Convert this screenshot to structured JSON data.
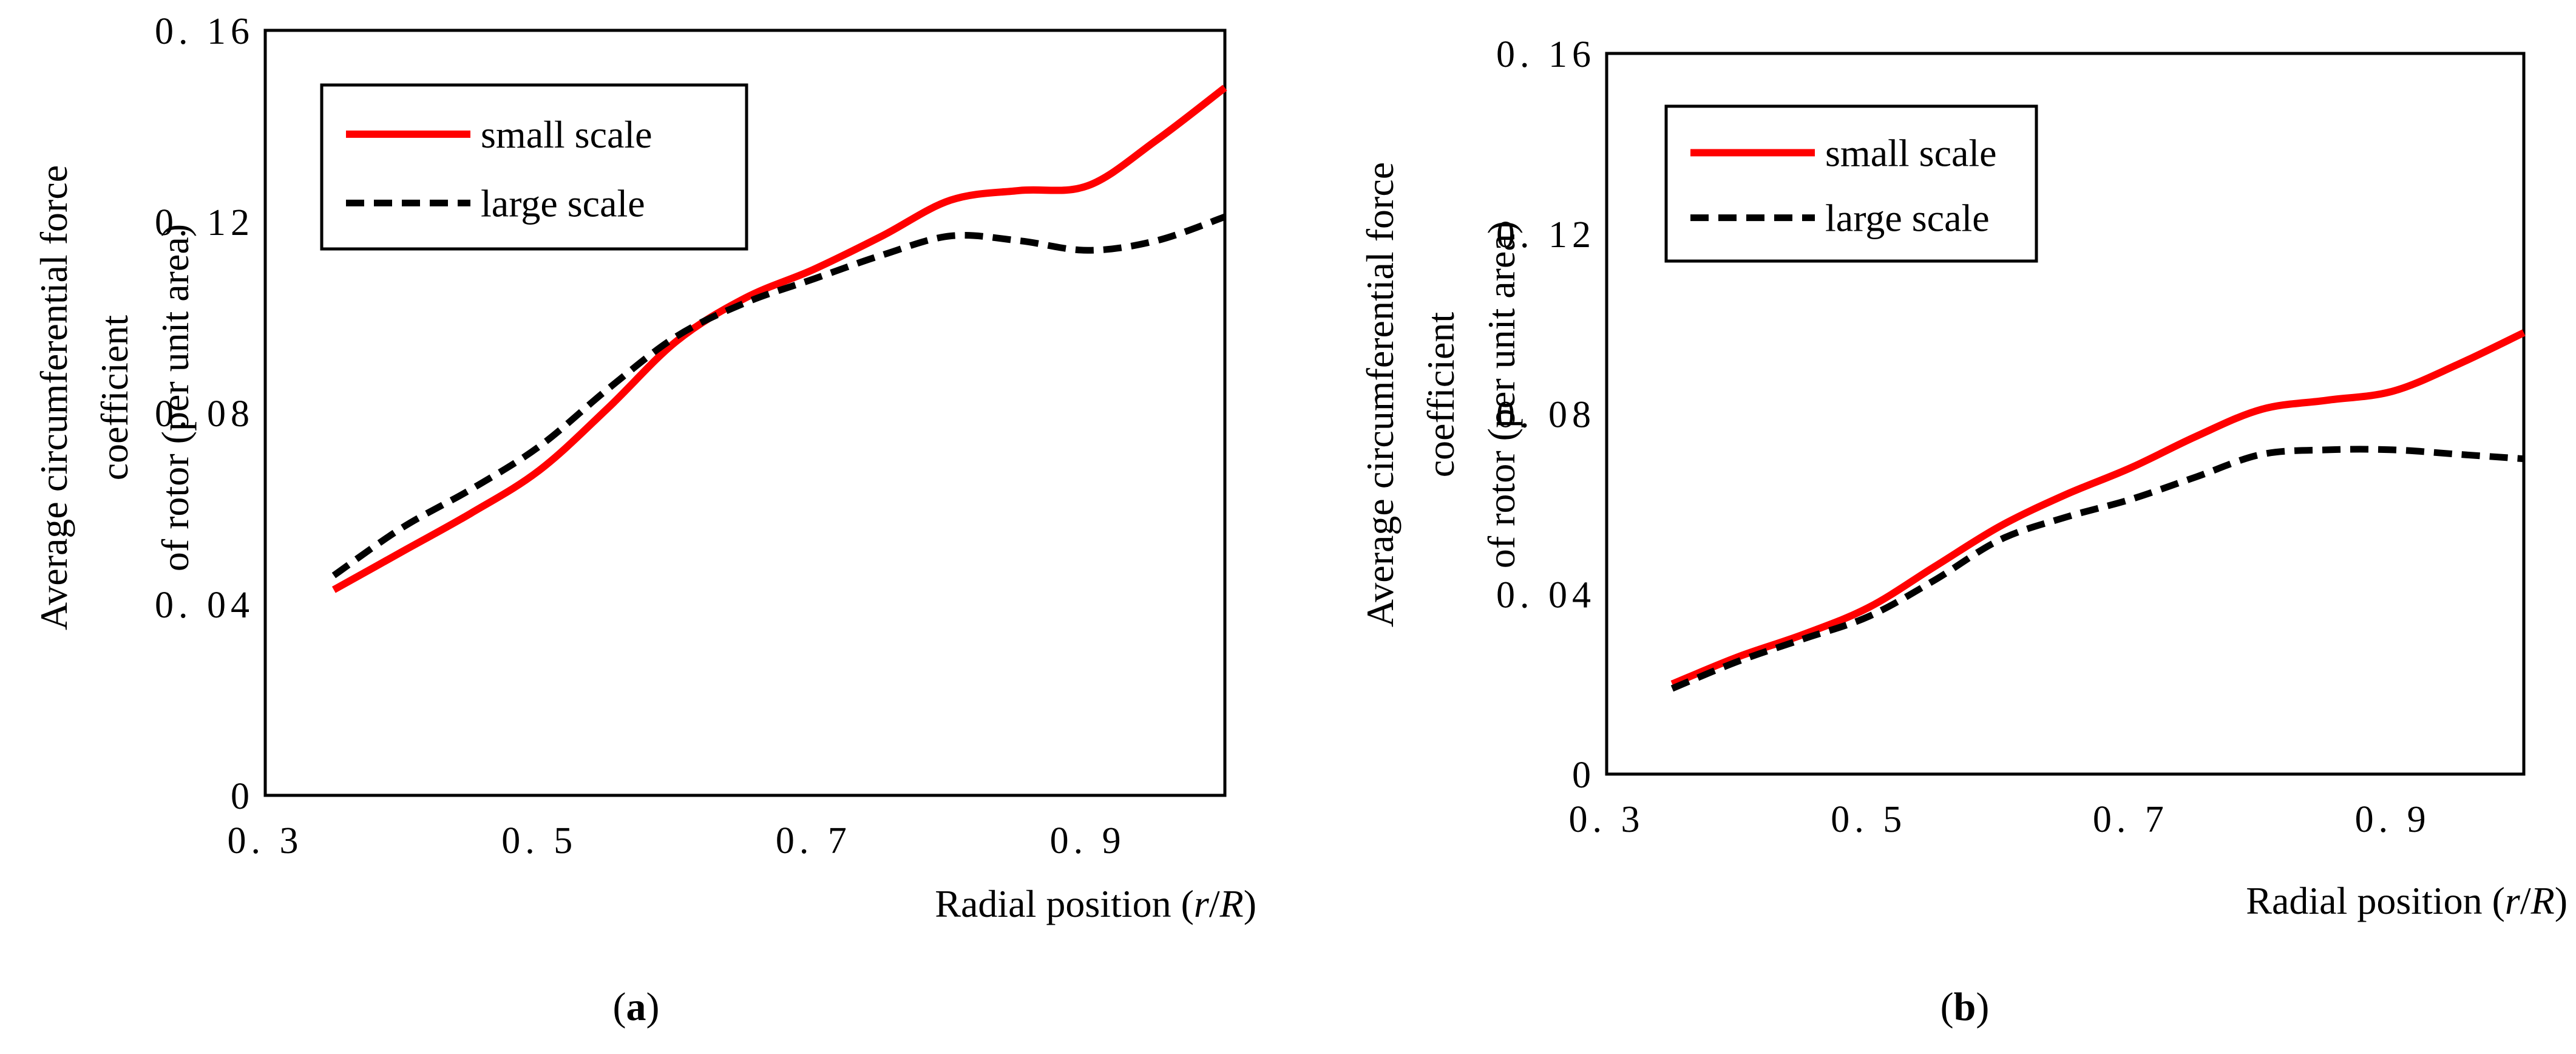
{
  "chart_data": [
    {
      "id": "a",
      "type": "line",
      "caption": "a",
      "xlabel_prefix": "Radial position (",
      "xlabel_r": "r",
      "xlabel_slash": "/",
      "xlabel_R": "R",
      "xlabel_suffix": ")",
      "ylabel_lines": [
        "Average circumferential force",
        "coefficient",
        "of rotor (per unit area)"
      ],
      "xlim": [
        0.3,
        1.0
      ],
      "ylim": [
        0,
        0.16
      ],
      "xticks": [
        0.3,
        0.5,
        0.7,
        0.9
      ],
      "xtick_labels": [
        "0. 3",
        "0. 5",
        "0. 7",
        "0. 9"
      ],
      "yticks": [
        0,
        0.04,
        0.08,
        0.12,
        0.16
      ],
      "ytick_labels": [
        "0",
        "0. 04",
        "0. 08",
        "0. 12",
        "0. 16"
      ],
      "legend_position": "top-left",
      "series": [
        {
          "name": "small scale",
          "color": "#ff0000",
          "dash": "solid",
          "x": [
            0.35,
            0.4,
            0.45,
            0.5,
            0.55,
            0.6,
            0.65,
            0.7,
            0.75,
            0.8,
            0.85,
            0.9,
            0.95,
            1.0
          ],
          "y": [
            0.043,
            0.051,
            0.059,
            0.068,
            0.081,
            0.095,
            0.104,
            0.11,
            0.117,
            0.1245,
            0.1265,
            0.1275,
            0.137,
            0.148
          ]
        },
        {
          "name": "large scale",
          "color": "#000000",
          "dash": "dashed",
          "x": [
            0.35,
            0.4,
            0.45,
            0.5,
            0.55,
            0.6,
            0.65,
            0.7,
            0.75,
            0.8,
            0.85,
            0.9,
            0.95,
            1.0
          ],
          "y": [
            0.046,
            0.056,
            0.064,
            0.073,
            0.085,
            0.096,
            0.103,
            0.108,
            0.113,
            0.117,
            0.116,
            0.114,
            0.116,
            0.121
          ]
        }
      ]
    },
    {
      "id": "b",
      "type": "line",
      "caption": "b",
      "xlabel_prefix": "Radial position (",
      "xlabel_r": "r",
      "xlabel_slash": "/",
      "xlabel_R": "R",
      "xlabel_suffix": ")",
      "ylabel_lines": [
        "Average circumferential force",
        "coefficient",
        "of rotor (per unit area)"
      ],
      "xlim": [
        0.3,
        1.0
      ],
      "ylim": [
        0,
        0.16
      ],
      "xticks": [
        0.3,
        0.5,
        0.7,
        0.9
      ],
      "xtick_labels": [
        "0. 3",
        "0. 5",
        "0. 7",
        "0. 9"
      ],
      "yticks": [
        0,
        0.04,
        0.08,
        0.12,
        0.16
      ],
      "ytick_labels": [
        "0",
        "0. 04",
        "0. 08",
        "0. 12",
        "0. 16"
      ],
      "legend_position": "top-left",
      "series": [
        {
          "name": "small scale",
          "color": "#ff0000",
          "dash": "solid",
          "x": [
            0.35,
            0.4,
            0.45,
            0.5,
            0.55,
            0.6,
            0.65,
            0.7,
            0.75,
            0.8,
            0.85,
            0.9,
            0.95,
            1.0
          ],
          "y": [
            0.02,
            0.026,
            0.031,
            0.037,
            0.046,
            0.055,
            0.062,
            0.068,
            0.075,
            0.081,
            0.083,
            0.085,
            0.091,
            0.098
          ]
        },
        {
          "name": "large scale",
          "color": "#000000",
          "dash": "dashed",
          "x": [
            0.35,
            0.4,
            0.45,
            0.5,
            0.55,
            0.6,
            0.65,
            0.7,
            0.75,
            0.8,
            0.85,
            0.9,
            0.95,
            1.0
          ],
          "y": [
            0.019,
            0.025,
            0.03,
            0.035,
            0.043,
            0.052,
            0.057,
            0.061,
            0.066,
            0.071,
            0.072,
            0.072,
            0.071,
            0.07
          ]
        }
      ]
    }
  ]
}
